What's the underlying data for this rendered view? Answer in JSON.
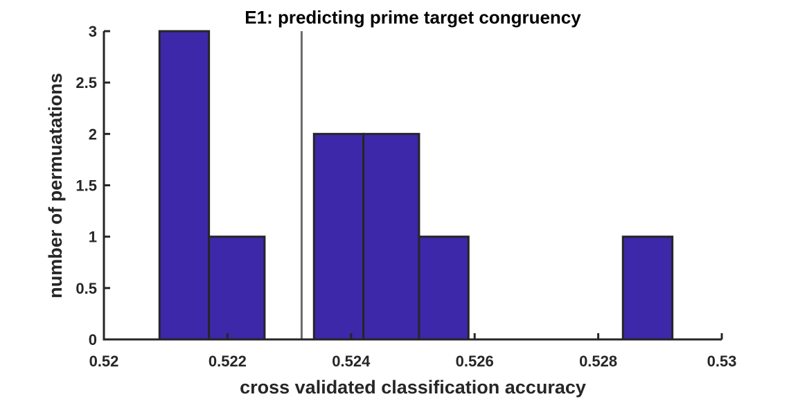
{
  "chart_data": {
    "type": "bar",
    "title": "E1: predicting prime target congruency",
    "xlabel": "cross validated classification accuracy",
    "ylabel": "number of permuatations",
    "xlim": [
      0.52,
      0.53
    ],
    "ylim": [
      0,
      3
    ],
    "xticks": [
      "0.52",
      "0.522",
      "0.524",
      "0.526",
      "0.528",
      "0.53"
    ],
    "yticks": [
      "0",
      "0.5",
      "1",
      "1.5",
      "2",
      "2.5",
      "3"
    ],
    "bin_edges": [
      0.5209,
      0.5217,
      0.5226,
      0.5234,
      0.5242,
      0.5251,
      0.5259,
      0.5267,
      0.5276,
      0.5284,
      0.5292
    ],
    "values": [
      3,
      1,
      0,
      2,
      2,
      1,
      0,
      0,
      0,
      1
    ],
    "reference_line_x": 0.5232,
    "bar_color": "#3c28a8",
    "reference_line_color": "#6b6b6b",
    "grid": false,
    "legend": "none"
  }
}
